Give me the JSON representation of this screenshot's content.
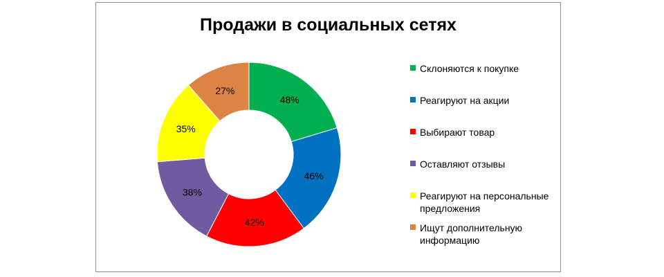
{
  "chart_data": {
    "type": "pie",
    "variant": "donut",
    "title": "Продажи в социальных сетях",
    "categories": [
      "Склоняются к покупке",
      "Реагируют на акции",
      "Выбирают товар",
      "Оставляют отзывы",
      "Реагируют на персональные предложения",
      "Ищут дополнительную информацию"
    ],
    "values": [
      48,
      46,
      42,
      38,
      35,
      27
    ],
    "labels": [
      "48%",
      "46%",
      "42%",
      "38%",
      "35%",
      "27%"
    ],
    "colors": [
      "#00b050",
      "#0070c0",
      "#ff0000",
      "#705ba0",
      "#ffff00",
      "#dd8444"
    ],
    "legend_position": "right"
  },
  "legend": {
    "items": [
      {
        "label": "Склоняются к покупке",
        "color": "#00b050"
      },
      {
        "label": "Реагируют на акции",
        "color": "#0070c0"
      },
      {
        "label": "Выбирают товар",
        "color": "#ff0000"
      },
      {
        "label": "Оставляют отзывы",
        "color": "#705ba0"
      },
      {
        "label": "Реагируют на персональные предложения",
        "color": "#ffff00"
      },
      {
        "label": "Ищут дополнительную информацию",
        "color": "#dd8444"
      }
    ]
  }
}
